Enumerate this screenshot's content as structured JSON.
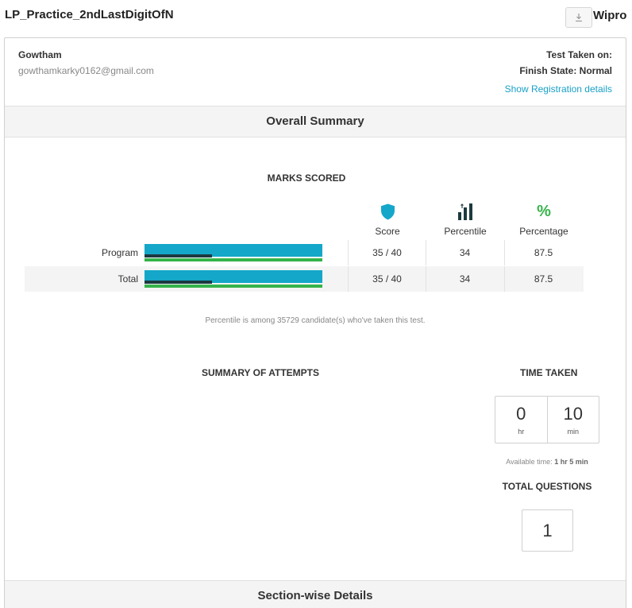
{
  "header": {
    "test_title": "LP_Practice_2ndLastDigitOfN",
    "brand": "Wipro",
    "download_icon": "download-icon"
  },
  "candidate": {
    "name": "Gowtham",
    "email": "gowthamkarky0162@gmail.com",
    "test_taken_label": "Test Taken on:",
    "finish_state": "Finish State: Normal",
    "registration_link": "Show Registration details"
  },
  "overall": {
    "title": "Overall Summary",
    "marks_title": "MARKS SCORED",
    "columns": {
      "score": "Score",
      "percentile": "Percentile",
      "percentage": "Percentage",
      "percentage_icon": "%"
    },
    "rows": [
      {
        "label": "Program",
        "score": "35 / 40",
        "percentile": "34",
        "percentage": "87.5",
        "score_fraction": 1.0,
        "percentile_fraction": 0.38,
        "percentage_fraction": 1.0
      },
      {
        "label": "Total",
        "score": "35 / 40",
        "percentile": "34",
        "percentage": "87.5",
        "score_fraction": 1.0,
        "percentile_fraction": 0.38,
        "percentage_fraction": 1.0
      }
    ],
    "percentile_note": "Percentile is among 35729 candidate(s) who've taken this test."
  },
  "attempts": {
    "title": "SUMMARY OF ATTEMPTS"
  },
  "time_taken": {
    "title": "TIME TAKEN",
    "hours": "0",
    "hours_unit": "hr",
    "minutes": "10",
    "minutes_unit": "min",
    "available_label": "Available time:",
    "available_value": "1 hr 5 min"
  },
  "total_questions": {
    "title": "TOTAL QUESTIONS",
    "value": "1"
  },
  "section_wise": {
    "title": "Section-wise Details"
  },
  "colors": {
    "accent": "#14a7c9",
    "dark": "#1c3a40",
    "green": "#35b34a",
    "link": "#1aa0c6"
  }
}
